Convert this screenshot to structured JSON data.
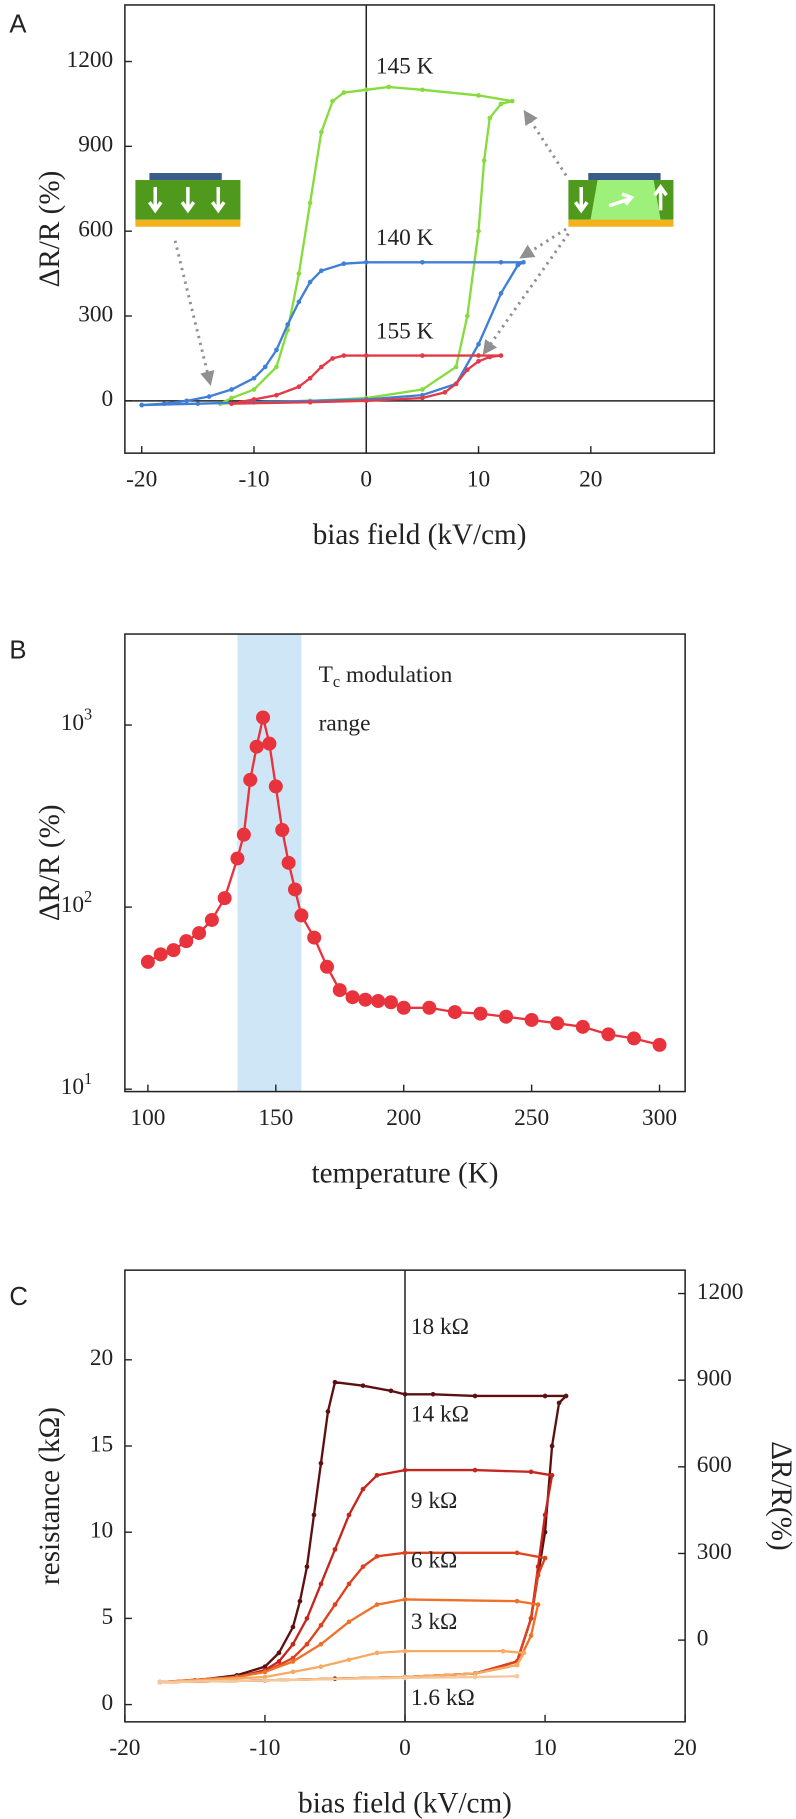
{
  "chart_data": [
    {
      "type": "line",
      "panel_label": "A",
      "xlabel": "bias field (kV/cm)",
      "ylabel": "ΔR/R (%)",
      "xlim": [
        -21.5,
        31
      ],
      "ylim": [
        -185,
        1400
      ],
      "xticks": [
        -20,
        -10,
        0,
        10,
        20
      ],
      "yticks": [
        0,
        300,
        600,
        900,
        1200
      ],
      "zero_line_x": true,
      "zero_line_y": true,
      "markers": true,
      "series_labels_colored": true,
      "series": [
        {
          "name": "145 K",
          "color": "#86dc3c",
          "x": [
            -13,
            -10,
            -5,
            0,
            5,
            8,
            9,
            10,
            10.5,
            11,
            12,
            13,
            10,
            5,
            2,
            0,
            -2,
            -3,
            -4,
            -5,
            -6,
            -7,
            -8,
            -10,
            -12,
            -13
          ],
          "values": [
            -10,
            -5,
            0,
            10,
            40,
            120,
            300,
            600,
            850,
            1000,
            1050,
            1060,
            1080,
            1100,
            1110,
            1100,
            1090,
            1060,
            950,
            700,
            450,
            250,
            120,
            40,
            10,
            -10
          ]
        },
        {
          "name": "140 K",
          "color": "#3f7fd6",
          "x": [
            -20,
            -15,
            -10,
            0,
            5,
            8,
            10,
            12,
            13.5,
            14,
            12,
            5,
            0,
            -2,
            -4,
            -5,
            -6,
            -7,
            -8,
            -9,
            -10,
            -12,
            -14,
            -16,
            -18,
            -20
          ],
          "values": [
            -15,
            -10,
            -5,
            5,
            20,
            60,
            200,
            380,
            480,
            490,
            490,
            490,
            490,
            485,
            460,
            420,
            350,
            270,
            180,
            120,
            80,
            40,
            15,
            0,
            -10,
            -15
          ]
        },
        {
          "name": "155 K",
          "color": "#e23a48",
          "x": [
            -12,
            -5,
            0,
            5,
            7,
            8,
            9,
            10,
            11,
            12,
            10,
            5,
            0,
            -2,
            -3,
            -4,
            -5,
            -6,
            -8,
            -10,
            -12
          ],
          "values": [
            -10,
            -5,
            0,
            10,
            30,
            60,
            110,
            140,
            155,
            160,
            160,
            160,
            160,
            160,
            150,
            120,
            80,
            50,
            20,
            5,
            -10
          ]
        }
      ]
    },
    {
      "type": "line",
      "panel_label": "B",
      "xlabel": "temperature (K)",
      "ylabel": "ΔR/R (%)",
      "xlim": [
        91,
        310
      ],
      "ylim": [
        9.7,
        3160
      ],
      "log_y": true,
      "xticks": [
        100,
        150,
        200,
        250,
        300
      ],
      "yticks": [
        {
          "value": 10,
          "label": "10",
          "exponent": "1"
        },
        {
          "value": 100,
          "label": "10",
          "exponent": "2"
        },
        {
          "value": 1000,
          "label": "10",
          "exponent": "3"
        }
      ],
      "shade": {
        "x": [
          135,
          160
        ],
        "color": "#cfe6f7"
      },
      "annotation": {
        "main": "T",
        "sub": "c",
        "rest": "modulation",
        "line2": "range",
        "color": "#3f7fd6"
      },
      "color": "#e8323c",
      "markers": true,
      "x": [
        100,
        105,
        110,
        115,
        120,
        125,
        130,
        135,
        137.5,
        140,
        142.5,
        145,
        147.5,
        150,
        152.5,
        155,
        157.5,
        160,
        165,
        170,
        175,
        180,
        185,
        190,
        195,
        200,
        210,
        220,
        230,
        240,
        250,
        260,
        270,
        280,
        290,
        300
      ],
      "values": [
        50,
        55,
        58,
        65,
        72,
        85,
        112,
        185,
        250,
        500,
        760,
        1100,
        790,
        460,
        265,
        175,
        125,
        90,
        68,
        47,
        35,
        32,
        31,
        30.5,
        30,
        28,
        28,
        26.5,
        26,
        25,
        24,
        23,
        22,
        20,
        19,
        17.5
      ]
    },
    {
      "type": "line",
      "panel_label": "C",
      "xlabel": "bias field (kV/cm)",
      "ylabel": "resistance (kΩ)",
      "y2label": "ΔR/R(%)",
      "xlim": [
        -20,
        20
      ],
      "ylim": [
        -1,
        25.2
      ],
      "y2lim": [
        -283,
        1281
      ],
      "xticks": [
        -20,
        -10,
        0,
        10,
        20
      ],
      "yticks": [
        0,
        5,
        10,
        15,
        20
      ],
      "y2ticks": [
        0,
        300,
        600,
        900,
        1200
      ],
      "zero_line_x": true,
      "zero_line_y": false,
      "markers": true,
      "series_labels_colored": false,
      "series": [
        {
          "name": "18 kΩ",
          "color": "#5c1010",
          "x": [
            -17.5,
            -10,
            -5,
            0,
            5,
            8,
            9,
            10,
            10.5,
            11,
            11.5,
            10,
            5,
            2,
            0,
            -1,
            -3,
            -5,
            -5.5,
            -6,
            -6.5,
            -7,
            -7.5,
            -8,
            -9,
            -10,
            -12,
            -15,
            -17.5
          ],
          "values": [
            1.3,
            1.4,
            1.5,
            1.6,
            1.8,
            2.5,
            5,
            10,
            15,
            17.5,
            17.9,
            17.9,
            17.9,
            18.0,
            18.0,
            18.2,
            18.5,
            18.7,
            17,
            14,
            11,
            8,
            6,
            4.5,
            3,
            2.2,
            1.7,
            1.4,
            1.3
          ]
        },
        {
          "name": "14 kΩ",
          "color": "#c4261e",
          "x": [
            -17.5,
            -10,
            0,
            5,
            8,
            9,
            9.5,
            10,
            10.5,
            9,
            5,
            0,
            -2,
            -3,
            -4,
            -5,
            -6,
            -7,
            -8,
            -9,
            -10,
            -12,
            -17.5
          ],
          "values": [
            1.3,
            1.4,
            1.6,
            1.8,
            2.5,
            5,
            8,
            11,
            13.3,
            13.5,
            13.6,
            13.6,
            13.3,
            12.5,
            11,
            9,
            7,
            5,
            3.5,
            2.5,
            2,
            1.6,
            1.3
          ]
        },
        {
          "name": "9 kΩ",
          "color": "#e0401c",
          "x": [
            -17.5,
            -10,
            0,
            5,
            8,
            9,
            9.5,
            10,
            8,
            0,
            -2,
            -3,
            -4,
            -5,
            -6,
            -7,
            -8,
            -10,
            -12,
            -17.5
          ],
          "values": [
            1.3,
            1.4,
            1.6,
            1.8,
            2.5,
            5,
            7.5,
            8.5,
            8.8,
            8.8,
            8.6,
            8,
            7,
            5.8,
            4.6,
            3.5,
            2.7,
            1.9,
            1.6,
            1.3
          ]
        },
        {
          "name": "6 kΩ",
          "color": "#ef7028",
          "x": [
            -17.5,
            -10,
            0,
            5,
            8,
            9,
            9.5,
            8,
            0,
            -2,
            -4,
            -6,
            -8,
            -10,
            -12,
            -17.5
          ],
          "values": [
            1.3,
            1.4,
            1.6,
            1.8,
            2.3,
            4,
            5.8,
            6.0,
            6.1,
            5.8,
            4.8,
            3.5,
            2.5,
            1.9,
            1.6,
            1.3
          ]
        },
        {
          "name": "3 kΩ",
          "color": "#f6aa62",
          "x": [
            -17.5,
            -10,
            0,
            5,
            8,
            8.5,
            7,
            0,
            -2,
            -4,
            -6,
            -8,
            -10,
            -17.5
          ],
          "values": [
            1.3,
            1.4,
            1.6,
            1.8,
            2.3,
            3,
            3.1,
            3.1,
            3.0,
            2.6,
            2.2,
            1.9,
            1.6,
            1.3
          ]
        },
        {
          "name": "1.6 kΩ",
          "color": "#f5c89c",
          "x": [
            -17.5,
            -10,
            0,
            5,
            8
          ],
          "values": [
            1.3,
            1.4,
            1.55,
            1.6,
            1.65
          ]
        }
      ]
    }
  ]
}
